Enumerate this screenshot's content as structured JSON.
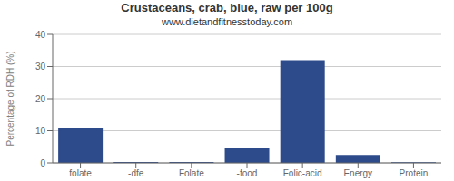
{
  "chart_data": {
    "type": "bar",
    "title": "Crustaceans, crab, blue, raw per 100g",
    "subtitle": "www.dietandfitnesstoday.com",
    "categories": [
      "folate",
      "-dfe",
      "Folate",
      "-food",
      "Folic-acid",
      "Energy",
      "Protein"
    ],
    "values": [
      11,
      0.3,
      0.3,
      4.5,
      32,
      2.5,
      0.2
    ],
    "color": "#2d4a8a",
    "ylabel": "Percentage of RDH (%)",
    "ylim": [
      0,
      40
    ],
    "yticks": [
      0,
      10,
      20,
      30,
      40
    ],
    "grid": true
  }
}
